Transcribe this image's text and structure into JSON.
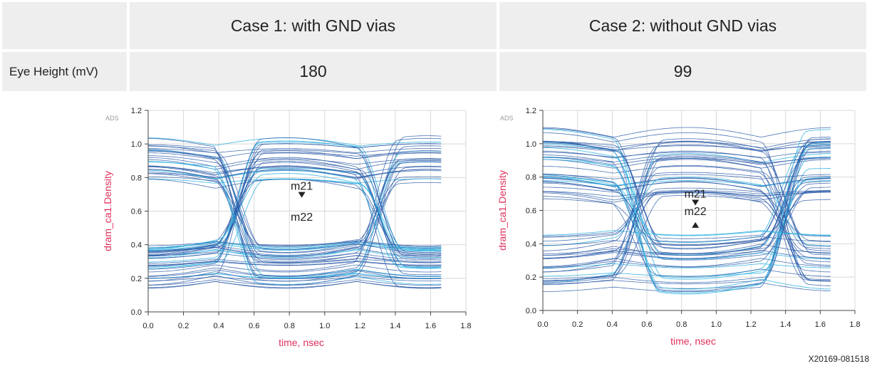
{
  "table": {
    "headers": [
      "",
      "Case 1: with GND vias",
      "Case 2: without GND vias"
    ],
    "row_label": "Eye Height (mV)",
    "values": [
      "180",
      "99"
    ]
  },
  "figure_id": "X20169-081518",
  "colors": {
    "trace": "#2a5aa8",
    "trace_light": "#2fb3e0",
    "axis_label": "#e0305a",
    "table_bg": "#eeeeee"
  },
  "chart_data": [
    {
      "type": "eye-diagram",
      "watermark": "ADS",
      "xlabel": "time, nsec",
      "ylabel": "dram_ca1.Density",
      "xlim": [
        0.0,
        1.8
      ],
      "ylim": [
        0.0,
        1.2
      ],
      "xticks": [
        "0.0",
        "0.2",
        "0.4",
        "0.6",
        "0.8",
        "1.0",
        "1.2",
        "1.4",
        "1.6",
        "1.8"
      ],
      "yticks": [
        "0.0",
        "0.2",
        "0.4",
        "0.6",
        "0.8",
        "1.0",
        "1.2"
      ],
      "data_extent_x": [
        0.0,
        1.66
      ],
      "high_band": [
        0.68,
        1.0
      ],
      "low_band": [
        0.18,
        0.48
      ],
      "crossings": [
        0.38,
        1.18
      ],
      "markers": [
        {
          "name": "m21",
          "x": 0.87,
          "y": 0.68,
          "arrow": "down"
        },
        {
          "name": "m22",
          "x": 0.87,
          "y": 0.5,
          "arrow": "none"
        }
      ]
    },
    {
      "type": "eye-diagram",
      "watermark": "ADS",
      "xlabel": "time, nsec",
      "ylabel": "dram_ca1.Density",
      "xlim": [
        0.0,
        1.8
      ],
      "ylim": [
        0.0,
        1.2
      ],
      "xticks": [
        "0.0",
        "0.2",
        "0.4",
        "0.6",
        "0.8",
        "1.0",
        "1.2",
        "1.4",
        "1.6",
        "1.8"
      ],
      "yticks": [
        "0.0",
        "0.2",
        "0.4",
        "0.6",
        "0.8",
        "1.0",
        "1.2"
      ],
      "data_extent_x": [
        0.0,
        1.66
      ],
      "high_band": [
        0.58,
        1.05
      ],
      "low_band": [
        0.13,
        0.53
      ],
      "crossings": [
        0.41,
        1.26
      ],
      "markers": [
        {
          "name": "m21",
          "x": 0.88,
          "y": 0.63,
          "arrow": "down"
        },
        {
          "name": "m22",
          "x": 0.88,
          "y": 0.53,
          "arrow": "up"
        }
      ]
    }
  ]
}
